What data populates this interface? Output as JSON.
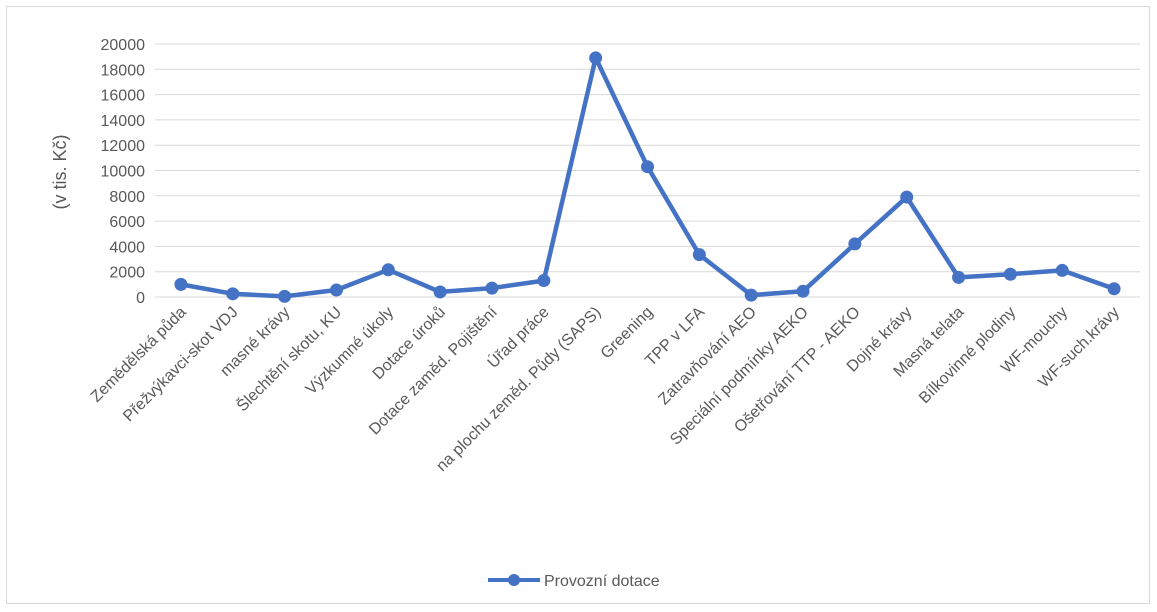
{
  "chart_data": {
    "type": "line",
    "title": "",
    "xlabel": "",
    "ylabel": "(v tis. Kč)",
    "ylim": [
      0,
      20000
    ],
    "yticks": [
      0,
      2000,
      4000,
      6000,
      8000,
      10000,
      12000,
      14000,
      16000,
      18000,
      20000
    ],
    "grid": true,
    "legend_position": "bottom",
    "categories": [
      "Zemědělská půda",
      "Přežvýkavci-skot VDJ",
      "masné krávy",
      "Šlechtění skotu, KU",
      "Výzkumné úkoly",
      "Dotace úroků",
      "Dotace zaměd. Pojištění",
      "Úřad práce",
      "na plochu zeměd. Půdy (SAPS)",
      "Greening",
      "TPP v LFA",
      "Zatravňování AEO",
      "Speciální podmínky AEKO",
      "Ošetřování TTP - AEKO",
      "Dojné krávy",
      "Masná telata",
      "Bílkovinné plodiny",
      "WF-mouchy",
      "WF-such.krávy"
    ],
    "series": [
      {
        "name": "Provozní dotace",
        "color": "#4472c4",
        "values": [
          1000,
          250,
          50,
          550,
          2150,
          400,
          700,
          1300,
          18900,
          10300,
          3350,
          150,
          450,
          4200,
          7900,
          1550,
          1800,
          2100,
          650
        ]
      }
    ]
  }
}
